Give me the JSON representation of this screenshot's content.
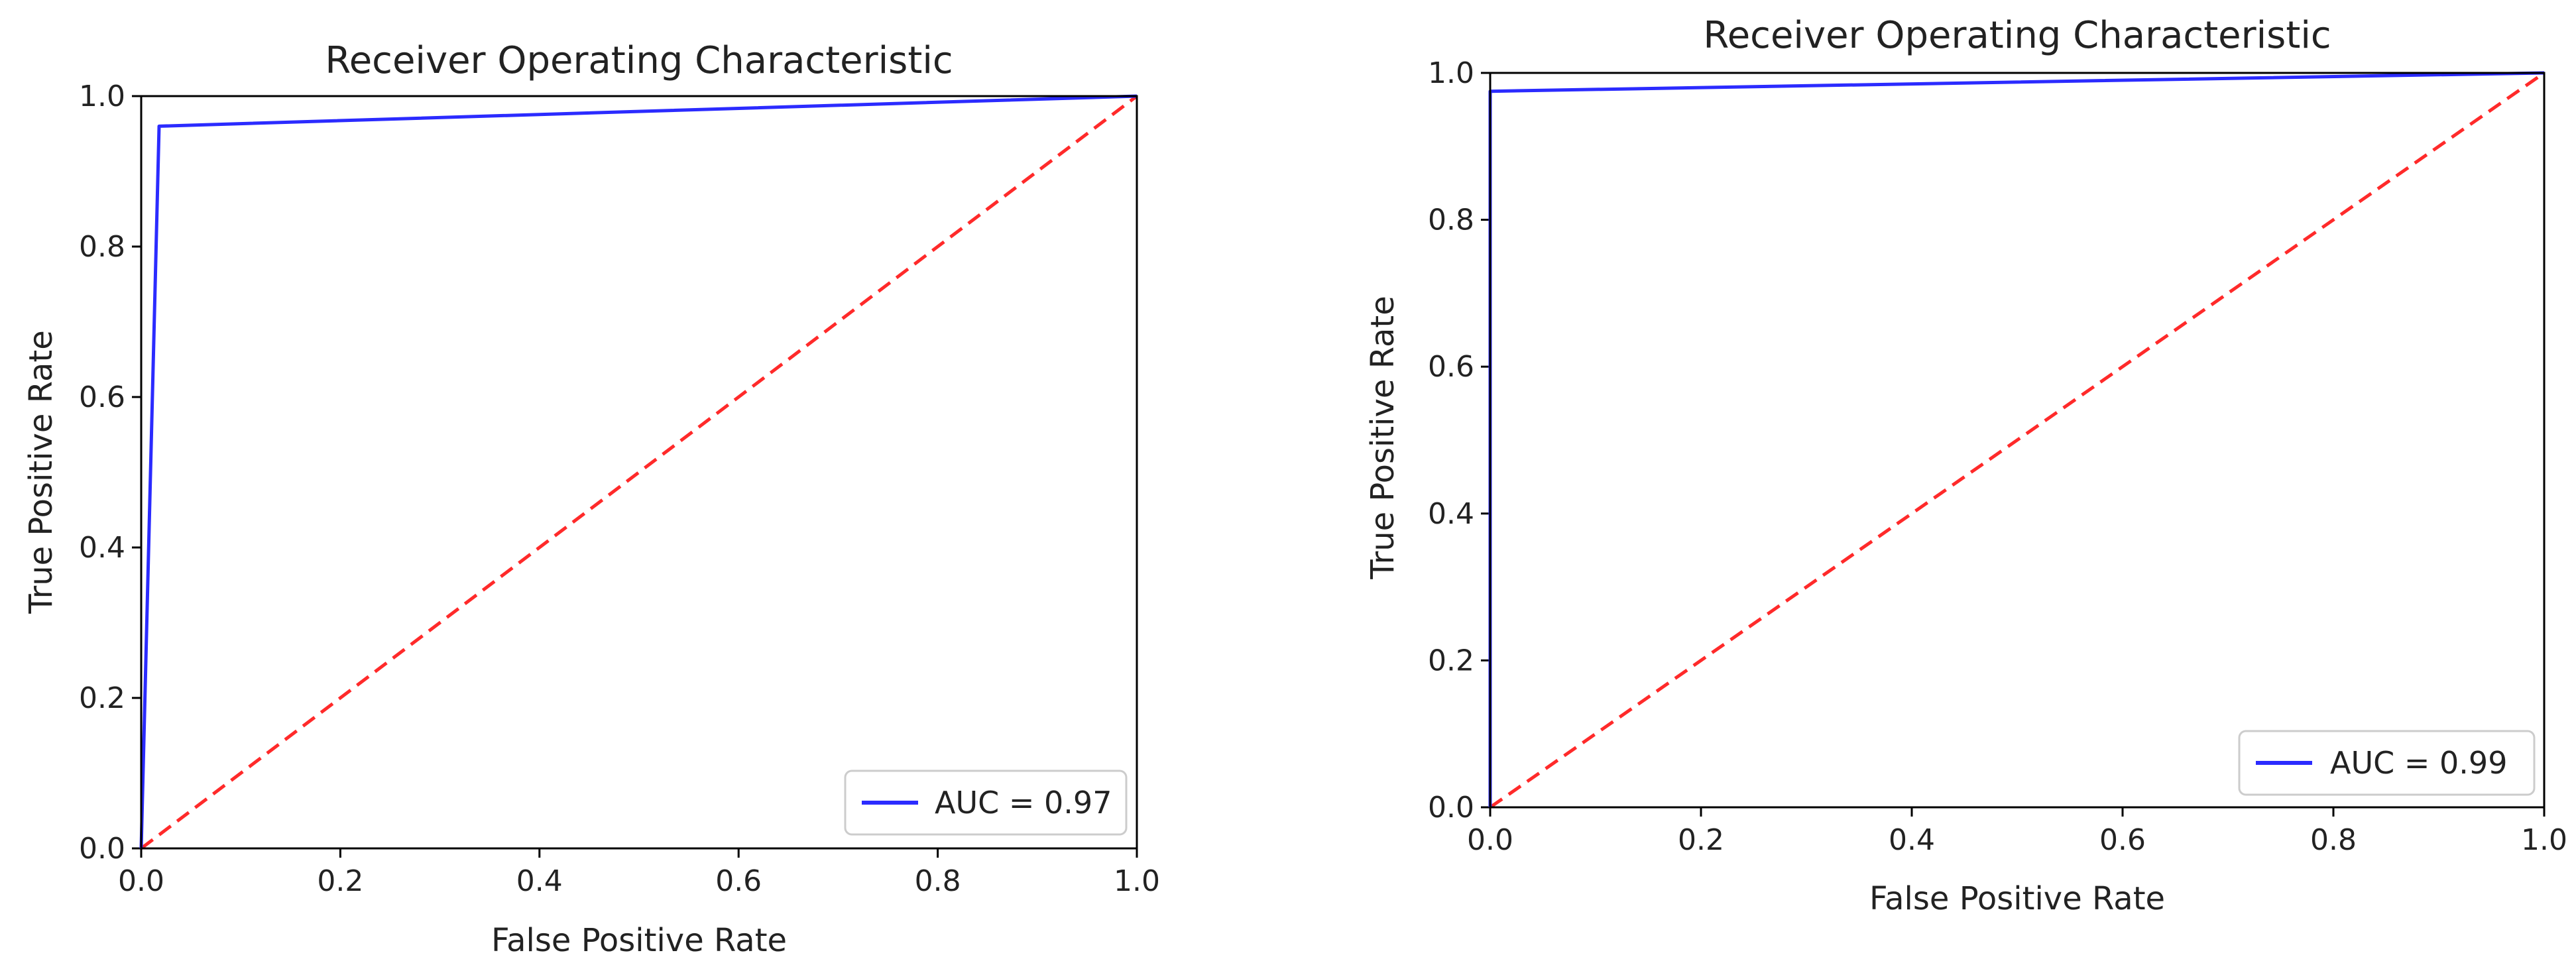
{
  "chart_data": [
    {
      "type": "line",
      "title": "Receiver Operating Characteristic",
      "xlabel": "False Positive Rate",
      "ylabel": "True Positive Rate",
      "xlim": [
        0.0,
        1.0
      ],
      "ylim": [
        0.0,
        1.0
      ],
      "xticks": [
        "0.0",
        "0.2",
        "0.4",
        "0.6",
        "0.8",
        "1.0"
      ],
      "yticks": [
        "0.0",
        "0.2",
        "0.4",
        "0.6",
        "0.8",
        "1.0"
      ],
      "grid": false,
      "legend": {
        "location": "lower-right",
        "entries": [
          "AUC = 0.97"
        ]
      },
      "series": [
        {
          "name": "AUC = 0.97",
          "color": "#2b2bff",
          "style": "solid",
          "x": [
            0.0,
            0.018,
            1.0
          ],
          "y": [
            0.0,
            0.96,
            1.0
          ]
        },
        {
          "name": "chance",
          "color": "#ff2a2a",
          "style": "dashed",
          "x": [
            0.0,
            1.0
          ],
          "y": [
            0.0,
            1.0
          ]
        }
      ]
    },
    {
      "type": "line",
      "title": "Receiver Operating Characteristic",
      "xlabel": "False Positive Rate",
      "ylabel": "True Positive Rate",
      "xlim": [
        0.0,
        1.0
      ],
      "ylim": [
        0.0,
        1.0
      ],
      "xticks": [
        "0.0",
        "0.2",
        "0.4",
        "0.6",
        "0.8",
        "1.0"
      ],
      "yticks": [
        "0.0",
        "0.2",
        "0.4",
        "0.6",
        "0.8",
        "1.0"
      ],
      "grid": false,
      "legend": {
        "location": "lower-right",
        "entries": [
          "AUC = 0.99"
        ]
      },
      "series": [
        {
          "name": "AUC = 0.99",
          "color": "#2b2bff",
          "style": "solid",
          "x": [
            0.0,
            0.0,
            1.0
          ],
          "y": [
            0.0,
            0.975,
            1.0
          ]
        },
        {
          "name": "chance",
          "color": "#ff2a2a",
          "style": "dashed",
          "x": [
            0.0,
            1.0
          ],
          "y": [
            0.0,
            1.0
          ]
        }
      ]
    }
  ]
}
